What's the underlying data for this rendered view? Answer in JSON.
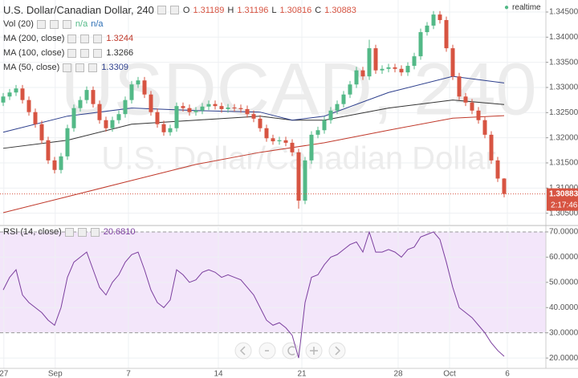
{
  "chart_data": {
    "type": "candlestick",
    "title": "U.S. Dollar/Canadian Dollar, 240",
    "watermark": "USDCAD, 240",
    "watermark_subtitle": "U.S. Dollar/Canadian Dollar",
    "ohlc_labels": [
      "O",
      "H",
      "L",
      "C"
    ],
    "realtime": "realtime",
    "countdown": "2:17:46",
    "up_color": "#53b987",
    "down_color": "#d75442",
    "open": [
      1.327,
      1.3282,
      1.329,
      1.3298,
      1.3275,
      1.3251,
      1.3227,
      1.3195,
      1.3155,
      1.3136,
      1.3163,
      1.3219,
      1.3259,
      1.3275,
      1.3295,
      1.3267,
      1.3235,
      1.3219,
      1.3235,
      1.3247,
      1.3275,
      1.3306,
      1.3314,
      1.3286,
      1.3251,
      1.3227,
      1.3211,
      1.3219,
      1.3263,
      1.3259,
      1.3251,
      1.3254,
      1.3262,
      1.3267,
      1.3263,
      1.3257,
      1.326,
      1.3259,
      1.3257,
      1.3247,
      1.3238,
      1.3219,
      1.3199,
      1.3193,
      1.3195,
      1.319,
      1.3171,
      1.3075,
      1.3155,
      1.3206,
      1.3215,
      1.3235,
      1.3254,
      1.3267,
      1.3286,
      1.3306,
      1.3334,
      1.3322,
      1.3378,
      1.3334,
      1.3337,
      1.334,
      1.3337,
      1.333,
      1.3343,
      1.3362,
      1.341,
      1.3423,
      1.3445,
      1.3434,
      1.3378,
      1.3322,
      1.3282,
      1.327,
      1.3254,
      1.3235,
      1.3206,
      1.3155,
      1.31189
    ],
    "high": [
      1.3289,
      1.3297,
      1.3305,
      1.3305,
      1.3282,
      1.3258,
      1.3234,
      1.3202,
      1.3162,
      1.317,
      1.3226,
      1.3266,
      1.3282,
      1.3302,
      1.3302,
      1.3274,
      1.3242,
      1.3242,
      1.3254,
      1.3282,
      1.3313,
      1.3321,
      1.3321,
      1.3293,
      1.3258,
      1.3234,
      1.3226,
      1.327,
      1.327,
      1.3266,
      1.3261,
      1.3269,
      1.3274,
      1.3274,
      1.327,
      1.3267,
      1.3267,
      1.3266,
      1.3264,
      1.3254,
      1.3245,
      1.3226,
      1.3206,
      1.3202,
      1.3202,
      1.3197,
      1.3178,
      1.3162,
      1.3213,
      1.3222,
      1.3242,
      1.3261,
      1.3274,
      1.3293,
      1.3313,
      1.3341,
      1.3341,
      1.3395,
      1.3385,
      1.3344,
      1.3347,
      1.3347,
      1.3344,
      1.335,
      1.3369,
      1.3417,
      1.343,
      1.3452,
      1.3452,
      1.3441,
      1.3385,
      1.3329,
      1.3289,
      1.3277,
      1.3261,
      1.3242,
      1.3213,
      1.3162,
      1.31196
    ],
    "low": [
      1.3263,
      1.3275,
      1.3283,
      1.3268,
      1.3244,
      1.322,
      1.3188,
      1.3148,
      1.3129,
      1.3129,
      1.3156,
      1.3212,
      1.3252,
      1.3268,
      1.326,
      1.3228,
      1.3212,
      1.3212,
      1.3228,
      1.324,
      1.3268,
      1.3299,
      1.3279,
      1.3244,
      1.322,
      1.3204,
      1.3204,
      1.3212,
      1.3252,
      1.3244,
      1.3244,
      1.3247,
      1.3255,
      1.3256,
      1.325,
      1.325,
      1.3252,
      1.325,
      1.324,
      1.3231,
      1.3212,
      1.3192,
      1.3186,
      1.3186,
      1.3183,
      1.3164,
      1.3059,
      1.3068,
      1.3148,
      1.3199,
      1.3208,
      1.3228,
      1.3247,
      1.326,
      1.3279,
      1.3299,
      1.3315,
      1.3315,
      1.3327,
      1.3327,
      1.333,
      1.333,
      1.3323,
      1.3323,
      1.3336,
      1.3355,
      1.3403,
      1.3416,
      1.3427,
      1.3371,
      1.3315,
      1.3275,
      1.3263,
      1.3247,
      1.3228,
      1.3199,
      1.3148,
      1.3112,
      1.30816
    ],
    "close": [
      1.3282,
      1.329,
      1.3298,
      1.3275,
      1.3251,
      1.3227,
      1.3195,
      1.3155,
      1.3136,
      1.3163,
      1.3219,
      1.3259,
      1.3275,
      1.3295,
      1.3267,
      1.3235,
      1.3219,
      1.3235,
      1.3247,
      1.3275,
      1.3306,
      1.3314,
      1.3286,
      1.3251,
      1.3227,
      1.3211,
      1.3219,
      1.3263,
      1.3259,
      1.3251,
      1.3254,
      1.3262,
      1.3267,
      1.3263,
      1.3257,
      1.326,
      1.3259,
      1.3257,
      1.3247,
      1.3238,
      1.3219,
      1.3199,
      1.3193,
      1.3195,
      1.319,
      1.3171,
      1.3075,
      1.3155,
      1.3206,
      1.3215,
      1.3235,
      1.3254,
      1.3267,
      1.3286,
      1.3306,
      1.3334,
      1.3322,
      1.3378,
      1.3334,
      1.3337,
      1.334,
      1.3337,
      1.333,
      1.3343,
      1.3362,
      1.341,
      1.3423,
      1.3445,
      1.3434,
      1.3378,
      1.3322,
      1.3282,
      1.327,
      1.3254,
      1.3235,
      1.3206,
      1.3155,
      1.31189,
      1.30883
    ],
    "xlim": [
      0,
      85
    ],
    "xticks": [
      {
        "value": 0.6,
        "label": "27"
      },
      {
        "value": 8.6,
        "label": "Sep"
      },
      {
        "value": 20,
        "label": "7"
      },
      {
        "value": 34,
        "label": "14"
      },
      {
        "value": 47,
        "label": "21"
      },
      {
        "value": 62,
        "label": "28"
      },
      {
        "value": 70,
        "label": "Oct"
      },
      {
        "value": 79,
        "label": "6"
      }
    ],
    "ylim": [
      1.30271,
      1.34739
    ],
    "yticks": [
      {
        "value": 1.345,
        "label": "1.34500"
      },
      {
        "value": 1.34,
        "label": "1.34000"
      },
      {
        "value": 1.335,
        "label": "1.33500"
      },
      {
        "value": 1.33,
        "label": "1.33000"
      },
      {
        "value": 1.325,
        "label": "1.32500"
      },
      {
        "value": 1.32,
        "label": "1.32000"
      },
      {
        "value": 1.315,
        "label": "1.31500"
      },
      {
        "value": 1.31,
        "label": "1.31000"
      },
      {
        "value": 1.305,
        "label": "1.30500"
      }
    ],
    "grid": true,
    "volume": {
      "name": "Vol (20)",
      "readout": [
        "n/a",
        "n/a"
      ]
    },
    "overlays": [
      {
        "name": "MA (200, close)",
        "color": "#c0392b",
        "x": [
          0.5,
          10.5,
          20.5,
          30.5,
          40.5,
          50.5,
          60.5,
          70.5,
          78.5
        ],
        "values": [
          1.3051,
          1.3083,
          1.3115,
          1.3147,
          1.3171,
          1.319,
          1.3215,
          1.3239,
          1.3244
        ]
      },
      {
        "name": "MA (100, close)",
        "color": "#333333",
        "x": [
          0.5,
          10.5,
          20.5,
          30.5,
          40.5,
          45.5,
          50.5,
          60.5,
          70.5,
          78.5
        ],
        "values": [
          1.3179,
          1.3195,
          1.3227,
          1.3235,
          1.3243,
          1.3235,
          1.3235,
          1.3259,
          1.3275,
          1.3266
        ]
      },
      {
        "name": "MA (50, close)",
        "color": "#2c3e8c",
        "x": [
          0.5,
          10.5,
          20.5,
          30.5,
          40.5,
          45.5,
          50.5,
          60.5,
          70.5,
          78.5
        ],
        "values": [
          1.3211,
          1.3243,
          1.3259,
          1.3254,
          1.3251,
          1.3235,
          1.3243,
          1.329,
          1.3322,
          1.3309
        ]
      }
    ],
    "indicator": {
      "type": "line",
      "name": "RSI (14, close)",
      "readout": "20.6810",
      "color": "#7b3f9e",
      "band": [
        30,
        70
      ],
      "band_color": "#f3e6fa",
      "values": [
        47,
        52,
        55,
        45,
        42,
        40,
        38,
        35,
        33,
        40,
        52,
        58,
        60,
        62,
        55,
        48,
        45,
        50,
        53,
        58,
        61,
        62,
        55,
        47,
        42,
        40,
        43,
        55,
        53,
        50,
        51,
        54,
        55,
        54,
        52,
        53,
        52,
        51,
        48,
        45,
        40,
        35,
        33,
        34,
        32,
        29,
        20,
        42,
        52,
        53,
        57,
        60,
        61,
        63,
        65,
        66,
        62,
        70,
        62,
        62,
        63,
        62,
        60,
        63,
        64,
        68,
        69,
        70,
        67,
        58,
        48,
        40,
        38,
        36,
        33,
        30,
        26,
        23,
        20.681
      ],
      "ylim": [
        15.9,
        71.9
      ],
      "yticks": [
        {
          "value": 70,
          "label": "70.0000"
        },
        {
          "value": 60,
          "label": "60.0000"
        },
        {
          "value": 50,
          "label": "50.0000"
        },
        {
          "value": 40,
          "label": "40.0000"
        },
        {
          "value": 30,
          "label": "30.0000"
        },
        {
          "value": 20,
          "label": "20.0000"
        }
      ]
    }
  }
}
